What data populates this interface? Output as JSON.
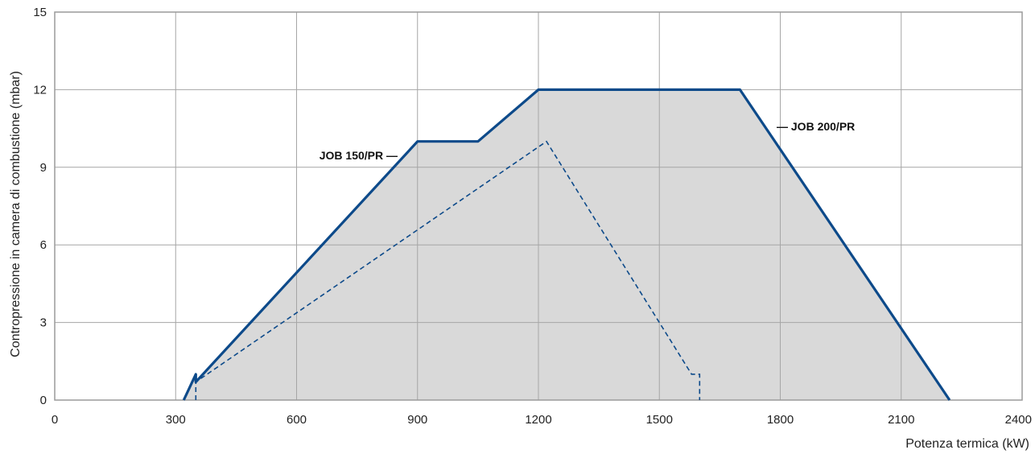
{
  "chart_data": {
    "type": "area",
    "xlabel": "Potenza termica (kW)",
    "ylabel": "Contropressione in camera di combustione (mbar)",
    "xlim": [
      0,
      2400
    ],
    "ylim": [
      0,
      15
    ],
    "x_ticks": [
      "0",
      "300",
      "600",
      "900",
      "1200",
      "1500",
      "1800",
      "2100",
      "2400"
    ],
    "y_ticks": [
      "0",
      "3",
      "6",
      "9",
      "12",
      "15"
    ],
    "grid": true,
    "colors": {
      "line": "#0d4a8a",
      "fill": "#d9d9d9",
      "grid": "#a6a6a6"
    },
    "series": [
      {
        "name": "JOB 200/PR",
        "style": "solid",
        "filled": true,
        "points": [
          [
            320,
            0
          ],
          [
            350,
            1.0
          ],
          [
            350,
            0.7
          ],
          [
            900,
            10.0
          ],
          [
            1050,
            10.0
          ],
          [
            1200,
            12.0
          ],
          [
            1700,
            12.0
          ],
          [
            2220,
            0
          ]
        ]
      },
      {
        "name": "JOB 150/PR",
        "style": "dashed",
        "filled": false,
        "points": [
          [
            350,
            0
          ],
          [
            350,
            0.7
          ],
          [
            1220,
            10.0
          ],
          [
            1580,
            1.0
          ],
          [
            1600,
            1.0
          ],
          [
            1600,
            0
          ]
        ]
      }
    ],
    "annotations": [
      {
        "text": "JOB 150/PR —",
        "series": "JOB 150/PR"
      },
      {
        "text": "— JOB 200/PR",
        "series": "JOB 200/PR"
      }
    ]
  }
}
